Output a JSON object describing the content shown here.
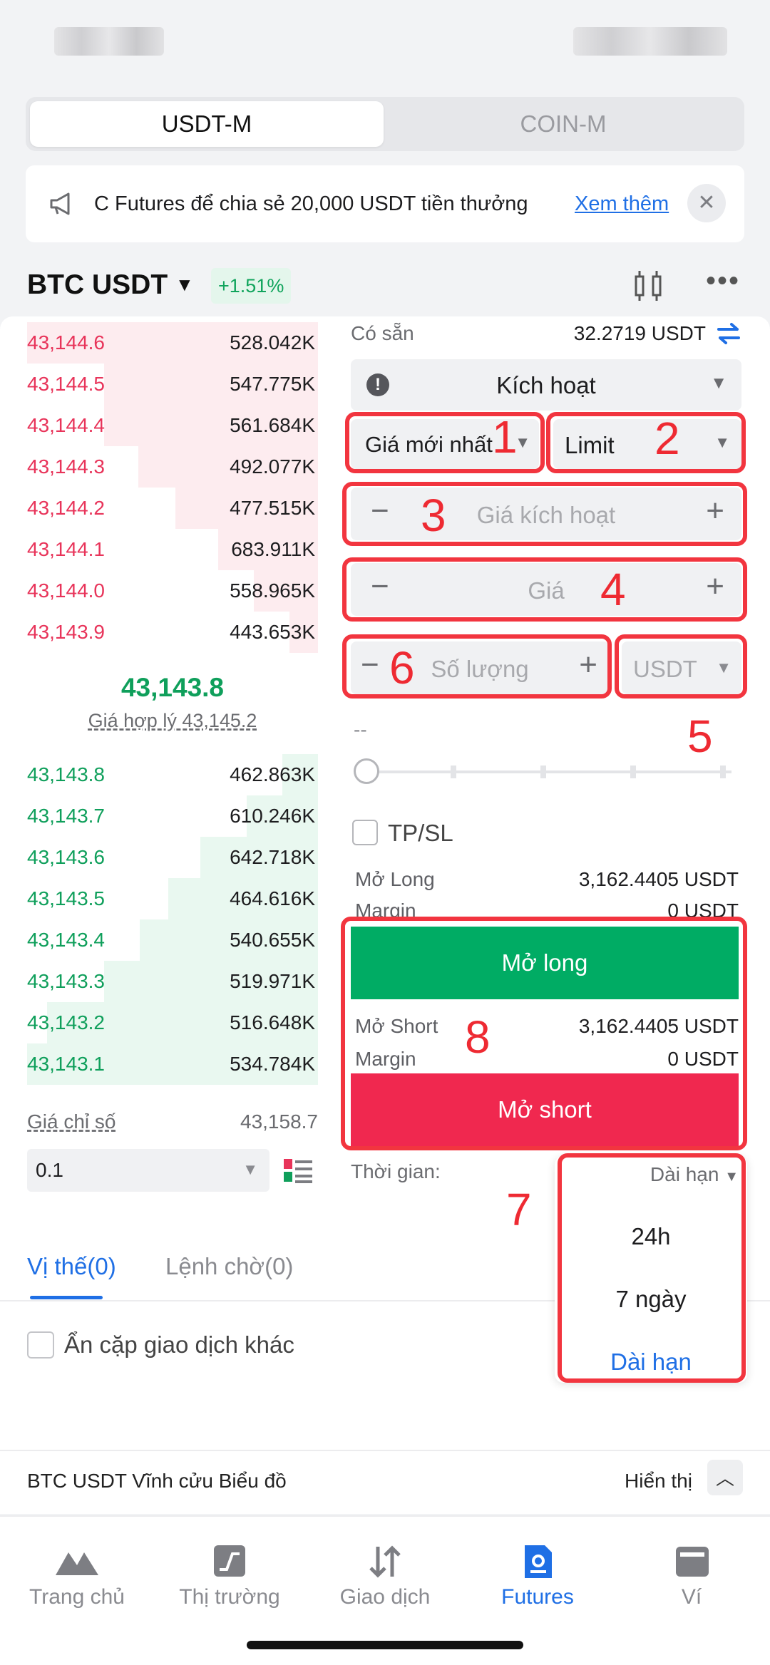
{
  "segment": {
    "active": "USDT-M",
    "inactive": "COIN-M"
  },
  "banner": {
    "text": "C Futures để chia sẻ 20,000 USDT tiền thưởng",
    "more": "Xem thêm",
    "close": "✕"
  },
  "symbol": {
    "name": "BTC USDT",
    "change": "+1.51%"
  },
  "orderbook": {
    "asks": [
      {
        "price": "43,144.6",
        "qty": "528.042K"
      },
      {
        "price": "43,144.5",
        "qty": "547.775K"
      },
      {
        "price": "43,144.4",
        "qty": "561.684K"
      },
      {
        "price": "43,144.3",
        "qty": "492.077K"
      },
      {
        "price": "43,144.2",
        "qty": "477.515K"
      },
      {
        "price": "43,144.1",
        "qty": "683.911K"
      },
      {
        "price": "43,144.0",
        "qty": "558.965K"
      },
      {
        "price": "43,143.9",
        "qty": "443.653K"
      }
    ],
    "last_price": "43,143.8",
    "fair_price": "Giá hợp lý 43,145.2",
    "bids": [
      {
        "price": "43,143.8",
        "qty": "462.863K"
      },
      {
        "price": "43,143.7",
        "qty": "610.246K"
      },
      {
        "price": "43,143.6",
        "qty": "642.718K"
      },
      {
        "price": "43,143.5",
        "qty": "464.616K"
      },
      {
        "price": "43,143.4",
        "qty": "540.655K"
      },
      {
        "price": "43,143.3",
        "qty": "519.971K"
      },
      {
        "price": "43,143.2",
        "qty": "516.648K"
      },
      {
        "price": "43,143.1",
        "qty": "534.784K"
      }
    ],
    "index_label": "Giá chỉ số",
    "index_value": "43,158.7",
    "precision": "0.1"
  },
  "form": {
    "available_label": "Có sẵn",
    "available_value": "32.2719 USDT",
    "order_type": "Kích hoạt",
    "trigger_source": "Giá mới nhất",
    "exec_type": "Limit",
    "trigger_price_ph": "Giá kích hoạt",
    "price_ph": "Giá",
    "qty_ph": "Số lượng",
    "unit": "USDT",
    "dash": "--",
    "tpsl": "TP/SL",
    "long_label": "Mở Long",
    "long_value": "3,162.4405 USDT",
    "margin_label": "Margin",
    "margin_value": "0 USDT",
    "btn_long": "Mở long",
    "short_label": "Mở Short",
    "short_value": "3,162.4405 USDT",
    "margin2_label": "Margin",
    "margin2_value": "0 USDT",
    "btn_short": "Mở short",
    "time_label": "Thời gian:",
    "time_value": "Dài hạn"
  },
  "dropdown": {
    "options": [
      "24h",
      "7 ngày",
      "Dài hạn"
    ]
  },
  "annotations": [
    "1",
    "2",
    "3",
    "4",
    "5",
    "6",
    "7",
    "8"
  ],
  "positions": {
    "tab_positions": "Vị thế(0)",
    "tab_orders": "Lệnh chờ(0)",
    "hide_other": "Ẩn cặp giao dịch khác"
  },
  "chartbar": {
    "title": "BTC USDT Vĩnh cửu Biểu đồ",
    "show": "Hiển thị"
  },
  "nav": {
    "home": "Trang chủ",
    "market": "Thị trường",
    "trade": "Giao dịch",
    "futures": "Futures",
    "wallet": "Ví"
  },
  "colors": {
    "green": "#00ac64",
    "red": "#f0284f",
    "accent": "#1f6fe5",
    "annotation": "#f2353f"
  }
}
